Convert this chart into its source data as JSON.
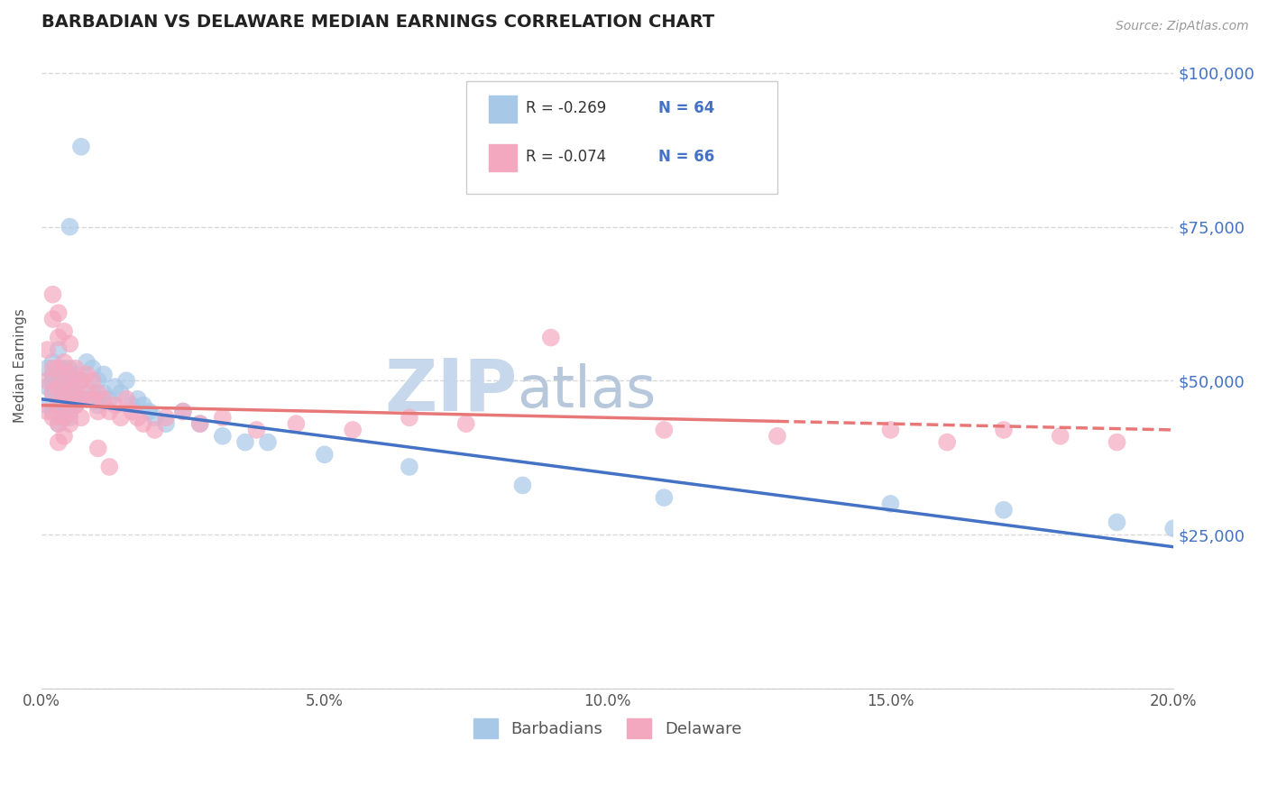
{
  "title": "BARBADIAN VS DELAWARE MEDIAN EARNINGS CORRELATION CHART",
  "source": "Source: ZipAtlas.com",
  "ylabel": "Median Earnings",
  "xlim": [
    0.0,
    0.2
  ],
  "ylim": [
    0,
    105000
  ],
  "yticks": [
    0,
    25000,
    50000,
    75000,
    100000
  ],
  "ytick_labels": [
    "",
    "$25,000",
    "$50,000",
    "$75,000",
    "$100,000"
  ],
  "xticks": [
    0.0,
    0.05,
    0.1,
    0.15,
    0.2
  ],
  "xtick_labels": [
    "0.0%",
    "5.0%",
    "10.0%",
    "15.0%",
    "20.0%"
  ],
  "background_color": "#ffffff",
  "grid_color": "#c8c8c8",
  "title_color": "#222222",
  "axis_label_color": "#555555",
  "tick_color_right": "#4472c4",
  "blue_color": "#a8c8e8",
  "pink_color": "#f4a8c0",
  "blue_line_color": "#4472c4",
  "pink_line_color": "#e87878",
  "watermark_color": "#dce8f4",
  "legend_R1": "R = -0.269",
  "legend_N1": "N = 64",
  "legend_R2": "R = -0.074",
  "legend_N2": "N = 66",
  "legend_label1": "Barbadians",
  "legend_label2": "Delaware",
  "blue_line_x0": 0.0,
  "blue_line_y0": 47000,
  "blue_line_x1": 0.2,
  "blue_line_y1": 23000,
  "pink_line_x0": 0.0,
  "pink_line_y0": 46000,
  "pink_line_x1": 0.2,
  "pink_line_y1": 42000,
  "blue_x": [
    0.001,
    0.001,
    0.001,
    0.002,
    0.002,
    0.002,
    0.002,
    0.002,
    0.003,
    0.003,
    0.003,
    0.003,
    0.003,
    0.003,
    0.004,
    0.004,
    0.004,
    0.004,
    0.004,
    0.004,
    0.004,
    0.005,
    0.005,
    0.005,
    0.005,
    0.005,
    0.005,
    0.006,
    0.006,
    0.006,
    0.007,
    0.007,
    0.007,
    0.008,
    0.008,
    0.009,
    0.009,
    0.01,
    0.01,
    0.011,
    0.011,
    0.012,
    0.013,
    0.014,
    0.015,
    0.016,
    0.017,
    0.018,
    0.019,
    0.02,
    0.022,
    0.025,
    0.028,
    0.032,
    0.036,
    0.04,
    0.05,
    0.065,
    0.085,
    0.11,
    0.15,
    0.17,
    0.19,
    0.2
  ],
  "blue_y": [
    49000,
    52000,
    46000,
    51000,
    48000,
    53000,
    45000,
    50000,
    47000,
    52000,
    50000,
    46000,
    55000,
    43000,
    51000,
    48000,
    52000,
    46000,
    50000,
    44000,
    47000,
    75000,
    49000,
    52000,
    46000,
    50000,
    44000,
    48000,
    51000,
    46000,
    50000,
    47000,
    88000,
    53000,
    47000,
    48000,
    52000,
    50000,
    46000,
    48000,
    51000,
    47000,
    49000,
    48000,
    50000,
    46000,
    47000,
    46000,
    45000,
    44000,
    43000,
    45000,
    43000,
    41000,
    40000,
    40000,
    38000,
    36000,
    33000,
    31000,
    30000,
    29000,
    27000,
    26000
  ],
  "pink_x": [
    0.001,
    0.001,
    0.001,
    0.002,
    0.002,
    0.002,
    0.002,
    0.003,
    0.003,
    0.003,
    0.003,
    0.003,
    0.003,
    0.004,
    0.004,
    0.004,
    0.004,
    0.004,
    0.005,
    0.005,
    0.005,
    0.005,
    0.005,
    0.006,
    0.006,
    0.006,
    0.007,
    0.007,
    0.007,
    0.008,
    0.008,
    0.009,
    0.009,
    0.01,
    0.01,
    0.011,
    0.012,
    0.013,
    0.014,
    0.015,
    0.016,
    0.017,
    0.018,
    0.02,
    0.022,
    0.025,
    0.028,
    0.032,
    0.038,
    0.045,
    0.055,
    0.065,
    0.075,
    0.09,
    0.11,
    0.13,
    0.15,
    0.16,
    0.17,
    0.18,
    0.19,
    0.002,
    0.003,
    0.004,
    0.01,
    0.012
  ],
  "pink_y": [
    55000,
    50000,
    45000,
    52000,
    48000,
    60000,
    44000,
    52000,
    49000,
    46000,
    57000,
    43000,
    40000,
    53000,
    50000,
    47000,
    44000,
    41000,
    51000,
    48000,
    45000,
    56000,
    43000,
    52000,
    49000,
    46000,
    50000,
    47000,
    44000,
    51000,
    48000,
    50000,
    47000,
    48000,
    45000,
    47000,
    45000,
    46000,
    44000,
    47000,
    45000,
    44000,
    43000,
    42000,
    44000,
    45000,
    43000,
    44000,
    42000,
    43000,
    42000,
    44000,
    43000,
    57000,
    42000,
    41000,
    42000,
    40000,
    42000,
    41000,
    40000,
    64000,
    61000,
    58000,
    39000,
    36000
  ]
}
